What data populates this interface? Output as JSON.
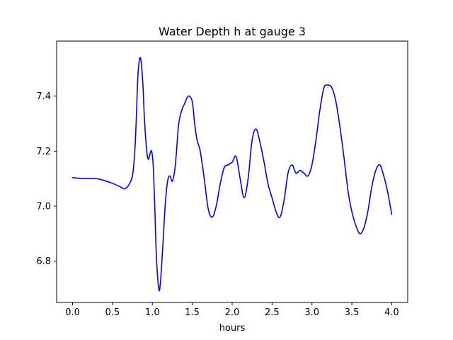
{
  "chart_data": {
    "type": "line",
    "title": "Water Depth h at gauge 3",
    "xlabel": "hours",
    "ylabel": "",
    "xlim": [
      -0.2,
      4.2
    ],
    "ylim": [
      6.65,
      7.6
    ],
    "xticks": [
      0.0,
      0.5,
      1.0,
      1.5,
      2.0,
      2.5,
      3.0,
      3.5,
      4.0
    ],
    "xtick_labels": [
      "0.0",
      "0.5",
      "1.0",
      "1.5",
      "2.0",
      "2.5",
      "3.0",
      "3.5",
      "4.0"
    ],
    "yticks": [
      6.8,
      7.0,
      7.2,
      7.4
    ],
    "ytick_labels": [
      "6.8",
      "7.0",
      "7.2",
      "7.4"
    ],
    "grid": false,
    "colors": {
      "line": "#0000ff",
      "axes": "#000000",
      "background": "#ffffff"
    },
    "series": [
      {
        "x": [
          0.0,
          0.1,
          0.2,
          0.3,
          0.4,
          0.5,
          0.6,
          0.65,
          0.7,
          0.75,
          0.78,
          0.8,
          0.82,
          0.85,
          0.88,
          0.9,
          0.93,
          0.95,
          0.97,
          0.99,
          1.01,
          1.03,
          1.05,
          1.08,
          1.1,
          1.13,
          1.16,
          1.19,
          1.22,
          1.25,
          1.28,
          1.3,
          1.33,
          1.37,
          1.4,
          1.45,
          1.5,
          1.53,
          1.56,
          1.6,
          1.65,
          1.7,
          1.75,
          1.8,
          1.85,
          1.9,
          1.95,
          2.0,
          2.05,
          2.1,
          2.15,
          2.2,
          2.25,
          2.3,
          2.35,
          2.4,
          2.45,
          2.5,
          2.55,
          2.6,
          2.65,
          2.7,
          2.75,
          2.8,
          2.85,
          2.9,
          2.95,
          3.0,
          3.05,
          3.1,
          3.15,
          3.2,
          3.25,
          3.3,
          3.35,
          3.4,
          3.45,
          3.5,
          3.55,
          3.6,
          3.65,
          3.7,
          3.75,
          3.8,
          3.85,
          3.9,
          3.95,
          4.0
        ],
        "y": [
          7.104,
          7.101,
          7.101,
          7.1,
          7.093,
          7.083,
          7.07,
          7.063,
          7.075,
          7.11,
          7.2,
          7.33,
          7.48,
          7.54,
          7.45,
          7.32,
          7.2,
          7.17,
          7.19,
          7.2,
          7.15,
          7.0,
          6.82,
          6.7,
          6.72,
          6.85,
          7.0,
          7.09,
          7.11,
          7.09,
          7.13,
          7.19,
          7.3,
          7.35,
          7.37,
          7.4,
          7.38,
          7.3,
          7.24,
          7.2,
          7.1,
          6.99,
          6.96,
          7.0,
          7.08,
          7.14,
          7.15,
          7.16,
          7.18,
          7.1,
          7.03,
          7.1,
          7.24,
          7.28,
          7.23,
          7.16,
          7.08,
          7.03,
          6.98,
          6.96,
          7.02,
          7.12,
          7.15,
          7.12,
          7.13,
          7.12,
          7.11,
          7.15,
          7.24,
          7.35,
          7.43,
          7.44,
          7.43,
          7.38,
          7.29,
          7.18,
          7.06,
          6.98,
          6.93,
          6.9,
          6.92,
          6.98,
          7.07,
          7.13,
          7.15,
          7.11,
          7.05,
          6.97
        ]
      }
    ]
  }
}
